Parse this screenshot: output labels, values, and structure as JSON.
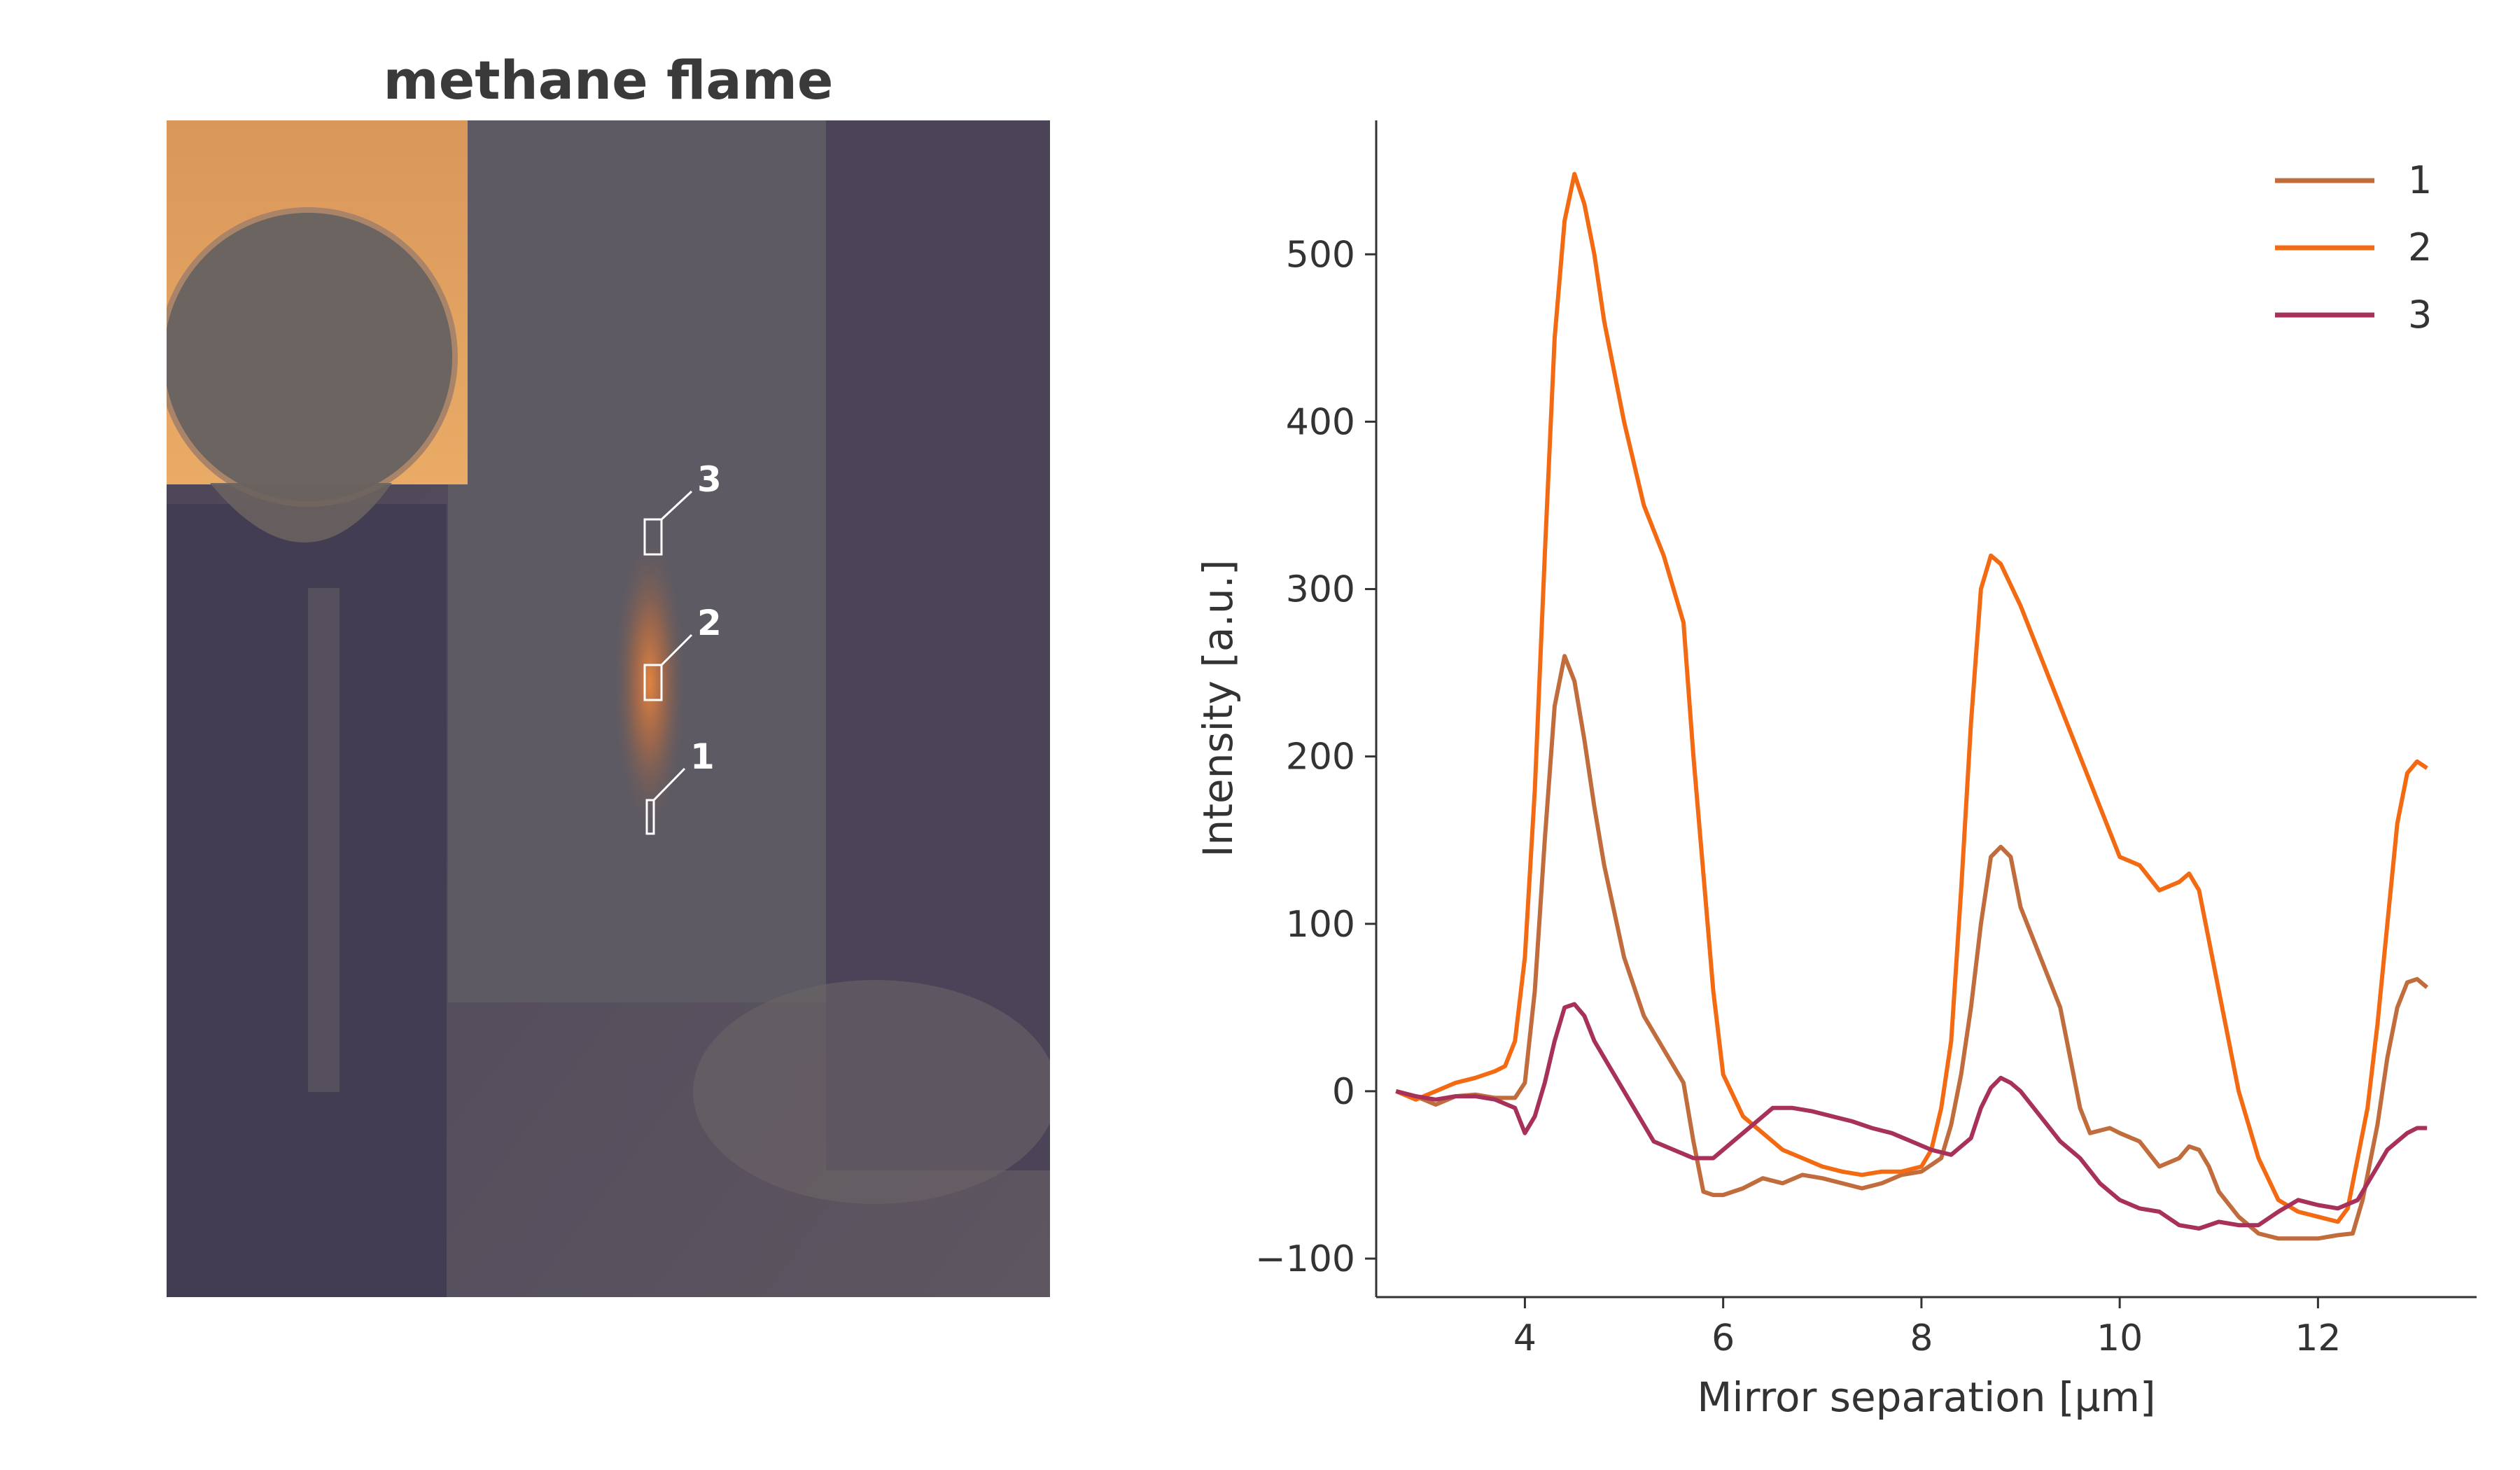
{
  "image_panel": {
    "title": "methane flame",
    "roi_labels": [
      "1",
      "2",
      "3"
    ]
  },
  "chart_data": {
    "type": "line",
    "title": "",
    "xlabel": "Mirror separation [µm]",
    "ylabel": "Intensity [a.u.]",
    "xlim": [
      2.5,
      13.6
    ],
    "ylim": [
      -123,
      580
    ],
    "xticks": [
      4,
      6,
      8,
      10,
      12
    ],
    "yticks": [
      -100,
      0,
      100,
      200,
      300,
      400,
      500
    ],
    "xtick_labels": [
      "4",
      "6",
      "8",
      "10",
      "12"
    ],
    "ytick_labels": [
      "−100",
      "0",
      "100",
      "200",
      "300",
      "400",
      "500"
    ],
    "grid": false,
    "legend_position": "top-right",
    "series": [
      {
        "name": "1",
        "color": "#c06c3d",
        "points": [
          [
            2.7,
            0
          ],
          [
            2.9,
            -3
          ],
          [
            3.1,
            -8
          ],
          [
            3.3,
            -3
          ],
          [
            3.5,
            -2
          ],
          [
            3.7,
            -4
          ],
          [
            3.9,
            -4
          ],
          [
            4.0,
            5
          ],
          [
            4.1,
            60
          ],
          [
            4.2,
            150
          ],
          [
            4.3,
            230
          ],
          [
            4.4,
            260
          ],
          [
            4.5,
            245
          ],
          [
            4.6,
            210
          ],
          [
            4.7,
            170
          ],
          [
            4.8,
            135
          ],
          [
            5.0,
            80
          ],
          [
            5.2,
            45
          ],
          [
            5.4,
            25
          ],
          [
            5.6,
            5
          ],
          [
            5.7,
            -30
          ],
          [
            5.8,
            -60
          ],
          [
            5.9,
            -62
          ],
          [
            6.0,
            -62
          ],
          [
            6.2,
            -58
          ],
          [
            6.4,
            -52
          ],
          [
            6.6,
            -55
          ],
          [
            6.8,
            -50
          ],
          [
            7.0,
            -52
          ],
          [
            7.2,
            -55
          ],
          [
            7.4,
            -58
          ],
          [
            7.6,
            -55
          ],
          [
            7.8,
            -50
          ],
          [
            8.0,
            -48
          ],
          [
            8.2,
            -40
          ],
          [
            8.3,
            -20
          ],
          [
            8.4,
            10
          ],
          [
            8.5,
            50
          ],
          [
            8.6,
            100
          ],
          [
            8.7,
            140
          ],
          [
            8.8,
            146
          ],
          [
            8.9,
            140
          ],
          [
            9.0,
            110
          ],
          [
            9.2,
            80
          ],
          [
            9.4,
            50
          ],
          [
            9.5,
            20
          ],
          [
            9.6,
            -10
          ],
          [
            9.7,
            -25
          ],
          [
            9.9,
            -22
          ],
          [
            10.0,
            -25
          ],
          [
            10.2,
            -30
          ],
          [
            10.4,
            -45
          ],
          [
            10.6,
            -40
          ],
          [
            10.7,
            -33
          ],
          [
            10.8,
            -35
          ],
          [
            10.9,
            -45
          ],
          [
            11.0,
            -60
          ],
          [
            11.2,
            -75
          ],
          [
            11.4,
            -85
          ],
          [
            11.6,
            -88
          ],
          [
            11.8,
            -88
          ],
          [
            12.0,
            -88
          ],
          [
            12.2,
            -86
          ],
          [
            12.35,
            -85
          ],
          [
            12.45,
            -65
          ],
          [
            12.6,
            -20
          ],
          [
            12.7,
            20
          ],
          [
            12.8,
            50
          ],
          [
            12.9,
            65
          ],
          [
            13.0,
            67
          ],
          [
            13.1,
            62
          ]
        ]
      },
      {
        "name": "2",
        "color": "#f36a12",
        "points": [
          [
            2.7,
            0
          ],
          [
            2.9,
            -5
          ],
          [
            3.1,
            0
          ],
          [
            3.3,
            5
          ],
          [
            3.5,
            8
          ],
          [
            3.7,
            12
          ],
          [
            3.8,
            15
          ],
          [
            3.9,
            30
          ],
          [
            4.0,
            80
          ],
          [
            4.1,
            180
          ],
          [
            4.2,
            320
          ],
          [
            4.3,
            450
          ],
          [
            4.4,
            520
          ],
          [
            4.5,
            548
          ],
          [
            4.6,
            530
          ],
          [
            4.7,
            500
          ],
          [
            4.8,
            460
          ],
          [
            5.0,
            400
          ],
          [
            5.2,
            350
          ],
          [
            5.4,
            320
          ],
          [
            5.6,
            280
          ],
          [
            5.7,
            200
          ],
          [
            5.8,
            130
          ],
          [
            5.9,
            60
          ],
          [
            6.0,
            10
          ],
          [
            6.2,
            -15
          ],
          [
            6.4,
            -25
          ],
          [
            6.6,
            -35
          ],
          [
            6.8,
            -40
          ],
          [
            7.0,
            -45
          ],
          [
            7.2,
            -48
          ],
          [
            7.4,
            -50
          ],
          [
            7.6,
            -48
          ],
          [
            7.8,
            -48
          ],
          [
            8.0,
            -45
          ],
          [
            8.1,
            -35
          ],
          [
            8.2,
            -10
          ],
          [
            8.3,
            30
          ],
          [
            8.4,
            120
          ],
          [
            8.5,
            220
          ],
          [
            8.6,
            300
          ],
          [
            8.7,
            320
          ],
          [
            8.8,
            315
          ],
          [
            9.0,
            290
          ],
          [
            9.2,
            260
          ],
          [
            9.4,
            230
          ],
          [
            9.6,
            200
          ],
          [
            9.8,
            170
          ],
          [
            10.0,
            140
          ],
          [
            10.2,
            135
          ],
          [
            10.4,
            120
          ],
          [
            10.6,
            125
          ],
          [
            10.7,
            130
          ],
          [
            10.8,
            120
          ],
          [
            11.0,
            60
          ],
          [
            11.2,
            0
          ],
          [
            11.4,
            -40
          ],
          [
            11.6,
            -65
          ],
          [
            11.8,
            -72
          ],
          [
            12.0,
            -75
          ],
          [
            12.2,
            -78
          ],
          [
            12.3,
            -70
          ],
          [
            12.4,
            -40
          ],
          [
            12.5,
            -10
          ],
          [
            12.6,
            40
          ],
          [
            12.7,
            100
          ],
          [
            12.8,
            160
          ],
          [
            12.9,
            190
          ],
          [
            13.0,
            197
          ],
          [
            13.1,
            193
          ]
        ]
      },
      {
        "name": "3",
        "color": "#a8315a",
        "points": [
          [
            2.7,
            0
          ],
          [
            2.9,
            -3
          ],
          [
            3.1,
            -5
          ],
          [
            3.3,
            -3
          ],
          [
            3.5,
            -3
          ],
          [
            3.7,
            -5
          ],
          [
            3.9,
            -10
          ],
          [
            4.0,
            -25
          ],
          [
            4.1,
            -15
          ],
          [
            4.2,
            5
          ],
          [
            4.3,
            30
          ],
          [
            4.4,
            50
          ],
          [
            4.5,
            52
          ],
          [
            4.6,
            45
          ],
          [
            4.7,
            30
          ],
          [
            4.9,
            10
          ],
          [
            5.1,
            -10
          ],
          [
            5.3,
            -30
          ],
          [
            5.5,
            -35
          ],
          [
            5.7,
            -40
          ],
          [
            5.9,
            -40
          ],
          [
            6.1,
            -30
          ],
          [
            6.3,
            -20
          ],
          [
            6.5,
            -10
          ],
          [
            6.7,
            -10
          ],
          [
            6.9,
            -12
          ],
          [
            7.1,
            -15
          ],
          [
            7.3,
            -18
          ],
          [
            7.5,
            -22
          ],
          [
            7.7,
            -25
          ],
          [
            7.9,
            -30
          ],
          [
            8.1,
            -35
          ],
          [
            8.3,
            -38
          ],
          [
            8.5,
            -28
          ],
          [
            8.6,
            -10
          ],
          [
            8.7,
            2
          ],
          [
            8.8,
            8
          ],
          [
            8.9,
            5
          ],
          [
            9.0,
            0
          ],
          [
            9.2,
            -15
          ],
          [
            9.4,
            -30
          ],
          [
            9.6,
            -40
          ],
          [
            9.8,
            -55
          ],
          [
            10.0,
            -65
          ],
          [
            10.2,
            -70
          ],
          [
            10.4,
            -72
          ],
          [
            10.6,
            -80
          ],
          [
            10.8,
            -82
          ],
          [
            11.0,
            -78
          ],
          [
            11.2,
            -80
          ],
          [
            11.4,
            -80
          ],
          [
            11.6,
            -72
          ],
          [
            11.8,
            -65
          ],
          [
            12.0,
            -68
          ],
          [
            12.2,
            -70
          ],
          [
            12.4,
            -65
          ],
          [
            12.5,
            -55
          ],
          [
            12.6,
            -45
          ],
          [
            12.7,
            -35
          ],
          [
            12.8,
            -30
          ],
          [
            12.9,
            -25
          ],
          [
            13.0,
            -22
          ],
          [
            13.1,
            -22
          ]
        ]
      }
    ]
  }
}
